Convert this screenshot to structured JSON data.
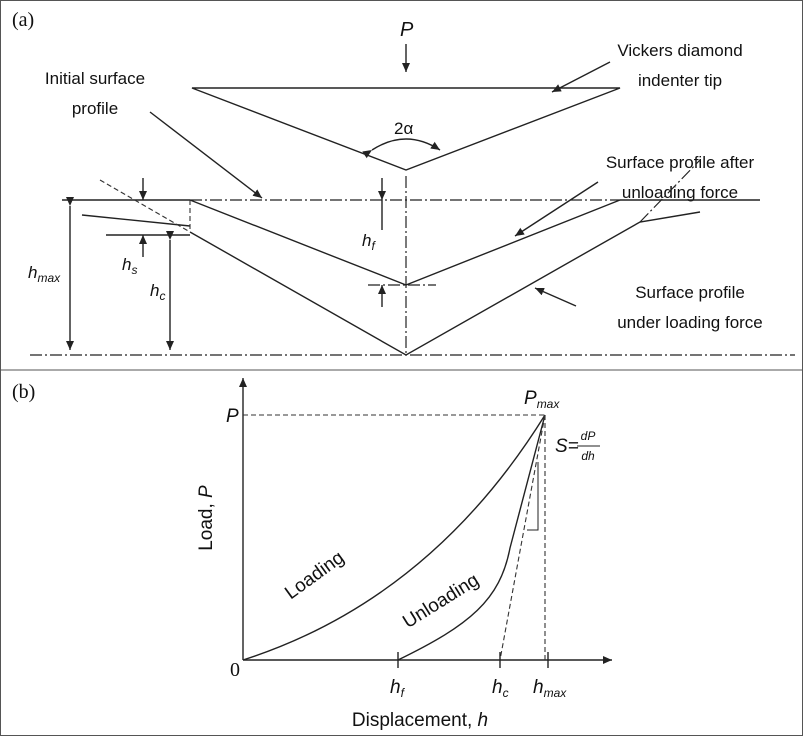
{
  "panel_a": {
    "label": "(a)",
    "load_symbol": "P",
    "angle": "2α",
    "indenter_label": [
      "Vickers diamond",
      "indenter tip"
    ],
    "initial_label": [
      "Initial surface",
      "profile"
    ],
    "unloaded_label": [
      "Surface profile after",
      "unloading force"
    ],
    "loaded_label": [
      "Surface profile",
      "under loading force"
    ],
    "h_max": {
      "symbol": "h",
      "subscript": "max"
    },
    "h_s": {
      "symbol": "h",
      "subscript": "s"
    },
    "h_c": {
      "symbol": "h",
      "subscript": "c"
    },
    "h_f": {
      "symbol": "h",
      "subscript": "f"
    }
  },
  "panel_b": {
    "label": "(b)",
    "y_axis_label": {
      "text": "Load, ",
      "symbol": "P"
    },
    "x_axis_label": {
      "text": "Displacement, ",
      "symbol": "h"
    },
    "origin": "0",
    "p_label": "P",
    "p_max": {
      "symbol": "P",
      "subscript": "max"
    },
    "loading": "Loading",
    "unloading": "Unloading",
    "stiffness": {
      "lhs": "S=",
      "numerator": "dP",
      "denominator": "dh"
    },
    "x_ticks": [
      {
        "symbol": "h",
        "subscript": "f"
      },
      {
        "symbol": "h",
        "subscript": "c"
      },
      {
        "symbol": "h",
        "subscript": "max"
      }
    ]
  }
}
